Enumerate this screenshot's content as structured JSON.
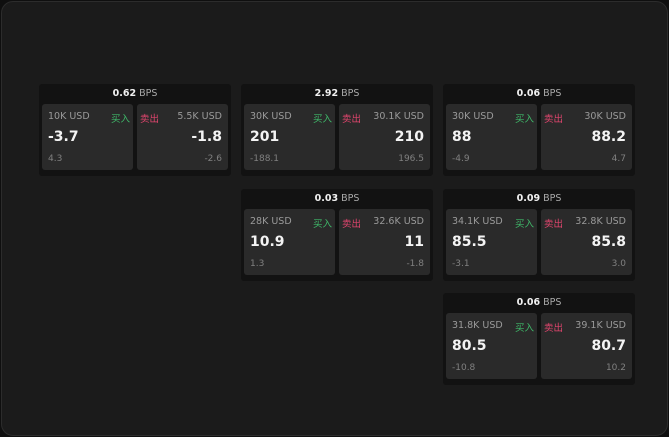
{
  "colors": {
    "buy": "#3fb96a",
    "sell": "#e0456d"
  },
  "buy_label": "买入",
  "sell_label": "卖出",
  "unit": "BPS",
  "cards": [
    {
      "spread": "0.62",
      "buy": {
        "size": "10K USD",
        "price": "-3.7",
        "change": "4.3"
      },
      "sell": {
        "size": "5.5K USD",
        "price": "-1.8",
        "change": "-2.6"
      }
    },
    {
      "spread": "2.92",
      "buy": {
        "size": "30K USD",
        "price": "201",
        "change": "-188.1"
      },
      "sell": {
        "size": "30.1K USD",
        "price": "210",
        "change": "196.5"
      }
    },
    {
      "spread": "0.06",
      "buy": {
        "size": "30K USD",
        "price": "88",
        "change": "-4.9"
      },
      "sell": {
        "size": "30K USD",
        "price": "88.2",
        "change": "4.7"
      }
    },
    {
      "spread": "0.03",
      "buy": {
        "size": "28K USD",
        "price": "10.9",
        "change": "1.3"
      },
      "sell": {
        "size": "32.6K USD",
        "price": "11",
        "change": "-1.8"
      }
    },
    {
      "spread": "0.09",
      "buy": {
        "size": "34.1K USD",
        "price": "85.5",
        "change": "-3.1"
      },
      "sell": {
        "size": "32.8K USD",
        "price": "85.8",
        "change": "3.0"
      }
    },
    {
      "spread": "0.06",
      "buy": {
        "size": "31.8K USD",
        "price": "80.5",
        "change": "-10.8"
      },
      "sell": {
        "size": "39.1K USD",
        "price": "80.7",
        "change": "10.2"
      }
    }
  ]
}
